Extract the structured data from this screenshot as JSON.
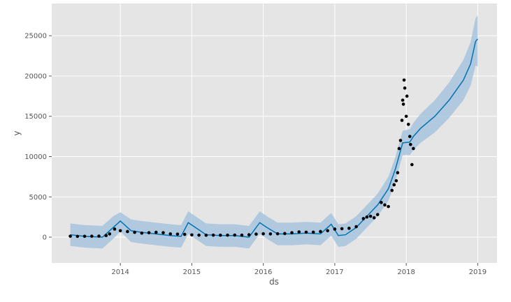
{
  "chart_data": {
    "type": "line",
    "xlabel": "ds",
    "ylabel": "y",
    "xlim": [
      2013.04,
      2019.27
    ],
    "ylim": [
      -3200,
      29000
    ],
    "xticks": [
      2014,
      2015,
      2016,
      2017,
      2018,
      2019
    ],
    "yticks": [
      0,
      5000,
      10000,
      15000,
      20000,
      25000
    ],
    "grid": true,
    "points": {
      "color": "#000000",
      "x": [
        2013.3,
        2013.4,
        2013.5,
        2013.6,
        2013.7,
        2013.8,
        2013.85,
        2013.92,
        2014.0,
        2014.1,
        2014.2,
        2014.3,
        2014.4,
        2014.5,
        2014.6,
        2014.7,
        2014.8,
        2014.9,
        2015.0,
        2015.1,
        2015.2,
        2015.3,
        2015.4,
        2015.5,
        2015.6,
        2015.7,
        2015.8,
        2015.9,
        2016.0,
        2016.1,
        2016.2,
        2016.3,
        2016.4,
        2016.5,
        2016.6,
        2016.7,
        2016.8,
        2016.9,
        2017.0,
        2017.1,
        2017.2,
        2017.3,
        2017.4,
        2017.45,
        2017.5,
        2017.55,
        2017.6,
        2017.65,
        2017.7,
        2017.75,
        2017.8,
        2017.83,
        2017.86,
        2017.88,
        2017.9,
        2017.92,
        2017.94,
        2017.95,
        2017.96,
        2017.97,
        2017.98,
        2018.0,
        2018.01,
        2018.03,
        2018.05,
        2018.06,
        2018.08,
        2018.1
      ],
      "values": [
        120,
        100,
        110,
        120,
        130,
        200,
        400,
        1000,
        800,
        700,
        600,
        500,
        550,
        600,
        550,
        400,
        380,
        350,
        280,
        250,
        240,
        250,
        240,
        250,
        260,
        250,
        300,
        380,
        420,
        400,
        420,
        450,
        550,
        650,
        620,
        620,
        700,
        800,
        1000,
        1050,
        1100,
        1300,
        2300,
        2500,
        2600,
        2400,
        2800,
        4300,
        4000,
        3800,
        5800,
        6500,
        7000,
        8000,
        11000,
        12000,
        14500,
        17000,
        16500,
        19500,
        18500,
        15000,
        17500,
        14000,
        12500,
        11500,
        9000,
        11000
      ]
    },
    "forecast": {
      "color": "#0072b2",
      "band_color": "#9fbfdc",
      "x": [
        2013.3,
        2013.5,
        2013.75,
        2013.9,
        2014.0,
        2014.15,
        2014.3,
        2014.5,
        2014.7,
        2014.85,
        2014.95,
        2015.05,
        2015.2,
        2015.4,
        2015.6,
        2015.8,
        2015.95,
        2016.05,
        2016.2,
        2016.4,
        2016.6,
        2016.8,
        2016.95,
        2017.05,
        2017.15,
        2017.3,
        2017.45,
        2017.6,
        2017.75,
        2017.85,
        2017.95,
        2018.05,
        2018.1,
        2018.2,
        2018.4,
        2018.6,
        2018.8,
        2018.9,
        2018.97,
        2019.0
      ],
      "values": [
        300,
        100,
        0,
        1200,
        2000,
        800,
        600,
        400,
        200,
        100,
        1800,
        1200,
        300,
        200,
        200,
        0,
        1800,
        1200,
        400,
        400,
        500,
        400,
        1600,
        200,
        300,
        1200,
        2600,
        4000,
        6000,
        8500,
        11700,
        11800,
        12500,
        13500,
        15000,
        17000,
        19500,
        21500,
        24300,
        24600
      ],
      "lower": [
        -1100,
        -1300,
        -1400,
        -200,
        700,
        -600,
        -800,
        -1000,
        -1200,
        -1300,
        400,
        -200,
        -1100,
        -1200,
        -1200,
        -1400,
        400,
        -200,
        -1000,
        -1000,
        -900,
        -1000,
        200,
        -1200,
        -1100,
        -200,
        1200,
        2600,
        4500,
        7000,
        10200,
        10200,
        10800,
        11700,
        13000,
        14800,
        17000,
        18800,
        21300,
        21200
      ],
      "upper": [
        1700,
        1500,
        1400,
        2600,
        3100,
        2200,
        2000,
        1800,
        1600,
        1500,
        3200,
        2600,
        1700,
        1600,
        1600,
        1400,
        3200,
        2600,
        1800,
        1800,
        1900,
        1800,
        3000,
        1600,
        1700,
        2600,
        4000,
        5400,
        7500,
        10000,
        13200,
        13400,
        14200,
        15300,
        17000,
        19200,
        22000,
        24200,
        27200,
        27500
      ]
    }
  }
}
